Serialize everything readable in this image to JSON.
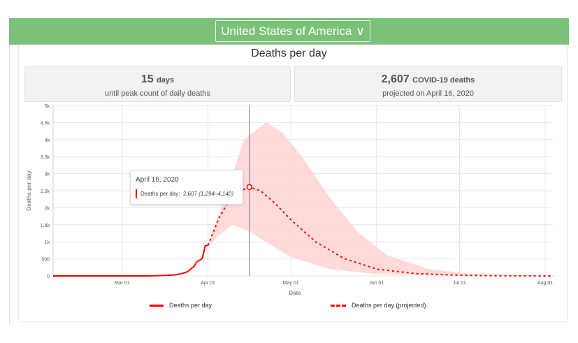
{
  "header": {
    "country": "United States of America"
  },
  "stats": [
    {
      "value": "15",
      "unit": "days",
      "sub": "until peak count of daily deaths"
    },
    {
      "value": "2,607",
      "unit": "COVID-19 deaths",
      "sub": "projected on April 16, 2020"
    }
  ],
  "tooltip": {
    "date": "April 16, 2020",
    "label": "Deaths per day:",
    "value": "2,607",
    "range": "(1,294–4,140)"
  },
  "colors": {
    "line": "#ff0000",
    "band": "#ffd6d6",
    "header": "#7bc17a"
  },
  "chart_data": {
    "type": "line",
    "title": "Deaths per day",
    "xlabel": "Date",
    "ylabel": "Deaths per day",
    "xlim": [
      "2020-02-05",
      "2020-08-04"
    ],
    "ylim": [
      0,
      5000
    ],
    "yticks": [
      0,
      500,
      1000,
      1500,
      2000,
      2500,
      3000,
      3500,
      4000,
      4500,
      5000
    ],
    "ytick_labels": [
      "0",
      "500",
      "1k",
      "1.5k",
      "2k",
      "2.5k",
      "3k",
      "3.5k",
      "4k",
      "4.5k",
      "5k"
    ],
    "xticks": [
      "2020-03-01",
      "2020-04-01",
      "2020-05-01",
      "2020-06-01",
      "2020-07-01",
      "2020-08-01"
    ],
    "xtick_labels": [
      "Mar 01",
      "Apr 01",
      "May 01",
      "Jun 01",
      "Jul 01",
      "Aug 01"
    ],
    "series": [
      {
        "name": "Deaths per day",
        "style": "solid",
        "points": [
          [
            "2020-02-05",
            0
          ],
          [
            "2020-03-10",
            0
          ],
          [
            "2020-03-15",
            10
          ],
          [
            "2020-03-20",
            30
          ],
          [
            "2020-03-22",
            60
          ],
          [
            "2020-03-24",
            100
          ],
          [
            "2020-03-25",
            150
          ],
          [
            "2020-03-26",
            220
          ],
          [
            "2020-03-27",
            280
          ],
          [
            "2020-03-28",
            420
          ],
          [
            "2020-03-29",
            460
          ],
          [
            "2020-03-30",
            520
          ],
          [
            "2020-03-31",
            880
          ],
          [
            "2020-04-01",
            900
          ]
        ]
      },
      {
        "name": "Deaths per day (projected)",
        "style": "dashed",
        "points": [
          [
            "2020-04-01",
            900
          ],
          [
            "2020-04-05",
            1700
          ],
          [
            "2020-04-10",
            2400
          ],
          [
            "2020-04-16",
            2607
          ],
          [
            "2020-04-20",
            2500
          ],
          [
            "2020-04-25",
            2150
          ],
          [
            "2020-05-01",
            1650
          ],
          [
            "2020-05-10",
            1000
          ],
          [
            "2020-05-20",
            520
          ],
          [
            "2020-06-01",
            200
          ],
          [
            "2020-06-15",
            70
          ],
          [
            "2020-07-01",
            20
          ],
          [
            "2020-07-15",
            5
          ],
          [
            "2020-08-04",
            0
          ]
        ]
      }
    ],
    "band": {
      "upper": [
        [
          "2020-04-01",
          900
        ],
        [
          "2020-04-08",
          2500
        ],
        [
          "2020-04-14",
          4000
        ],
        [
          "2020-04-22",
          4500
        ],
        [
          "2020-04-28",
          4200
        ],
        [
          "2020-05-05",
          3500
        ],
        [
          "2020-05-15",
          2300
        ],
        [
          "2020-05-25",
          1300
        ],
        [
          "2020-06-05",
          600
        ],
        [
          "2020-06-20",
          200
        ],
        [
          "2020-07-05",
          60
        ],
        [
          "2020-08-04",
          5
        ]
      ],
      "lower": [
        [
          "2020-04-01",
          850
        ],
        [
          "2020-04-05",
          1200
        ],
        [
          "2020-04-10",
          1500
        ],
        [
          "2020-04-16",
          1300
        ],
        [
          "2020-04-25",
          850
        ],
        [
          "2020-05-01",
          550
        ],
        [
          "2020-05-15",
          200
        ],
        [
          "2020-06-01",
          50
        ],
        [
          "2020-07-01",
          5
        ],
        [
          "2020-08-04",
          0
        ]
      ]
    },
    "highlight": {
      "date": "2020-04-16",
      "value": 2607
    },
    "legend": [
      "Deaths per day",
      "Deaths per day (projected)"
    ],
    "legend_position": "bottom"
  }
}
